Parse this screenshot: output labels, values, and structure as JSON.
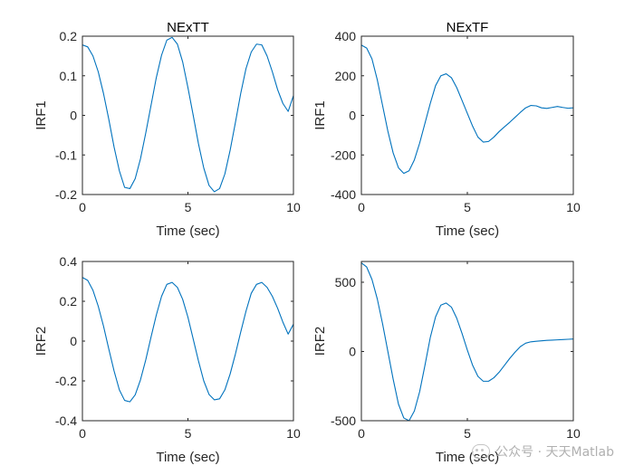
{
  "chart_data": [
    {
      "type": "line",
      "title": "NExTT",
      "xlabel": "Time (sec)",
      "ylabel": "IRF1",
      "xlim": [
        0,
        10
      ],
      "ylim": [
        -0.2,
        0.2
      ],
      "xticks": [
        0,
        5,
        10
      ],
      "xtick_labels": [
        "0",
        "5",
        "10"
      ],
      "yticks": [
        -0.2,
        -0.1,
        0,
        0.1,
        0.2
      ],
      "ytick_labels": [
        "-0.2",
        "-0.1",
        "0",
        "0.1",
        "0.2"
      ],
      "series_color": "#0072bd",
      "x": [
        0,
        0.25,
        0.5,
        0.75,
        1.0,
        1.25,
        1.5,
        1.75,
        2.0,
        2.25,
        2.5,
        2.75,
        3.0,
        3.25,
        3.5,
        3.75,
        4.0,
        4.25,
        4.5,
        4.75,
        5.0,
        5.25,
        5.5,
        5.75,
        6.0,
        6.25,
        6.5,
        6.75,
        7.0,
        7.25,
        7.5,
        7.75,
        8.0,
        8.25,
        8.5,
        8.75,
        9.0,
        9.25,
        9.5,
        9.75,
        10.0
      ],
      "y": [
        0.178,
        0.173,
        0.15,
        0.11,
        0.055,
        -0.01,
        -0.08,
        -0.14,
        -0.182,
        -0.185,
        -0.16,
        -0.11,
        -0.045,
        0.025,
        0.095,
        0.152,
        0.19,
        0.197,
        0.18,
        0.135,
        0.07,
        0.0,
        -0.072,
        -0.133,
        -0.177,
        -0.193,
        -0.185,
        -0.148,
        -0.088,
        -0.018,
        0.055,
        0.118,
        0.16,
        0.18,
        0.178,
        0.15,
        0.11,
        0.065,
        0.03,
        0.01,
        0.05
      ]
    },
    {
      "type": "line",
      "title": "NExTF",
      "xlabel": "Time (sec)",
      "ylabel": "IRF1",
      "xlim": [
        0,
        10
      ],
      "ylim": [
        -400,
        400
      ],
      "xticks": [
        0,
        5,
        10
      ],
      "xtick_labels": [
        "0",
        "5",
        "10"
      ],
      "yticks": [
        -400,
        -200,
        0,
        200,
        400
      ],
      "ytick_labels": [
        "-400",
        "-200",
        "0",
        "200",
        "400"
      ],
      "series_color": "#0072bd",
      "x": [
        0,
        0.25,
        0.5,
        0.75,
        1.0,
        1.25,
        1.5,
        1.75,
        2.0,
        2.25,
        2.5,
        2.75,
        3.0,
        3.25,
        3.5,
        3.75,
        4.0,
        4.25,
        4.5,
        4.75,
        5.0,
        5.25,
        5.5,
        5.75,
        6.0,
        6.25,
        6.5,
        6.75,
        7.0,
        7.25,
        7.5,
        7.75,
        8.0,
        8.25,
        8.5,
        8.75,
        9.0,
        9.25,
        9.5,
        9.75,
        10.0
      ],
      "y": [
        355,
        340,
        285,
        180,
        50,
        -80,
        -190,
        -265,
        -293,
        -280,
        -225,
        -140,
        -40,
        60,
        150,
        200,
        210,
        190,
        140,
        75,
        10,
        -55,
        -110,
        -135,
        -132,
        -110,
        -82,
        -58,
        -35,
        -10,
        15,
        38,
        50,
        48,
        38,
        35,
        40,
        45,
        40,
        36,
        38
      ]
    },
    {
      "type": "line",
      "title": "",
      "xlabel": "Time (sec)",
      "ylabel": "IRF2",
      "xlim": [
        0,
        10
      ],
      "ylim": [
        -0.4,
        0.4
      ],
      "xticks": [
        0,
        5,
        10
      ],
      "xtick_labels": [
        "0",
        "5",
        "10"
      ],
      "yticks": [
        -0.4,
        -0.2,
        0,
        0.2,
        0.4
      ],
      "ytick_labels": [
        "-0.4",
        "-0.2",
        "0",
        "0.2",
        "0.4"
      ],
      "series_color": "#0072bd",
      "x": [
        0,
        0.25,
        0.5,
        0.75,
        1.0,
        1.25,
        1.5,
        1.75,
        2.0,
        2.25,
        2.5,
        2.75,
        3.0,
        3.25,
        3.5,
        3.75,
        4.0,
        4.25,
        4.5,
        4.75,
        5.0,
        5.25,
        5.5,
        5.75,
        6.0,
        6.25,
        6.5,
        6.75,
        7.0,
        7.25,
        7.5,
        7.75,
        8.0,
        8.25,
        8.5,
        8.75,
        9.0,
        9.25,
        9.5,
        9.75,
        10.0
      ],
      "y": [
        0.32,
        0.305,
        0.255,
        0.175,
        0.075,
        -0.04,
        -0.15,
        -0.245,
        -0.298,
        -0.305,
        -0.27,
        -0.195,
        -0.095,
        0.02,
        0.13,
        0.225,
        0.285,
        0.295,
        0.27,
        0.21,
        0.12,
        0.01,
        -0.1,
        -0.2,
        -0.268,
        -0.295,
        -0.29,
        -0.245,
        -0.165,
        -0.065,
        0.045,
        0.15,
        0.24,
        0.285,
        0.295,
        0.27,
        0.225,
        0.165,
        0.095,
        0.035,
        0.085
      ]
    },
    {
      "type": "line",
      "title": "",
      "xlabel": "Time (sec)",
      "ylabel": "IRF2",
      "xlim": [
        0,
        10
      ],
      "ylim": [
        -500,
        650
      ],
      "xticks": [
        0,
        5,
        10
      ],
      "xtick_labels": [
        "0",
        "5",
        "10"
      ],
      "yticks": [
        -500,
        0,
        500
      ],
      "ytick_labels": [
        "-500",
        "0",
        "500"
      ],
      "series_color": "#0072bd",
      "x": [
        0,
        0.25,
        0.5,
        0.75,
        1.0,
        1.25,
        1.5,
        1.75,
        2.0,
        2.25,
        2.5,
        2.75,
        3.0,
        3.25,
        3.5,
        3.75,
        4.0,
        4.25,
        4.5,
        4.75,
        5.0,
        5.25,
        5.5,
        5.75,
        6.0,
        6.25,
        6.5,
        6.75,
        7.0,
        7.25,
        7.5,
        7.75,
        8.0,
        8.25,
        8.5,
        8.75,
        9.0,
        9.25,
        9.5,
        9.75,
        10.0
      ],
      "y": [
        640,
        610,
        520,
        380,
        200,
        0,
        -200,
        -380,
        -480,
        -500,
        -430,
        -290,
        -100,
        100,
        250,
        335,
        350,
        320,
        240,
        130,
        10,
        -100,
        -180,
        -215,
        -215,
        -190,
        -150,
        -100,
        -50,
        -5,
        35,
        60,
        70,
        74,
        77,
        80,
        82,
        84,
        86,
        88,
        90
      ]
    }
  ],
  "watermark": {
    "text": "公众号 · 天天Matlab",
    "icon": "wechat-icon"
  }
}
